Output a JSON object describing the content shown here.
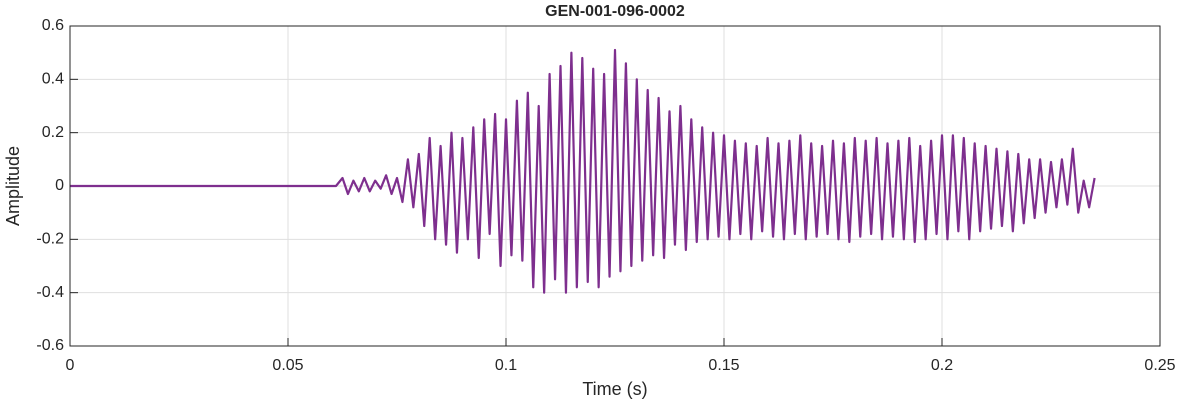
{
  "chart_data": {
    "type": "line",
    "title": "GEN-001-096-0002",
    "x_label": "Time (s)",
    "y_label": "Amplitude",
    "xlim": [
      0,
      0.25
    ],
    "xticks": [
      0,
      0.05,
      0.1,
      0.15,
      0.2,
      0.25
    ],
    "ylim": [
      -0.6,
      0.6
    ],
    "yticks": [
      0.6,
      0.4,
      0.2,
      0,
      -0.2,
      -0.4,
      -0.6
    ],
    "grid": true,
    "series": [
      {
        "name": "GEN-001-096-0002",
        "color": "#7e2f8e",
        "x": [
          0,
          0.061,
          0.0625,
          0.06375,
          0.065,
          0.06625,
          0.0675,
          0.06875,
          0.07,
          0.07125,
          0.0725,
          0.07375,
          0.075,
          0.07625,
          0.0775,
          0.07875,
          0.08,
          0.08125,
          0.0825,
          0.08375,
          0.085,
          0.08625,
          0.0875,
          0.08875,
          0.09,
          0.09125,
          0.0925,
          0.09375,
          0.095,
          0.09625,
          0.0975,
          0.09875,
          0.1,
          0.10125,
          0.1025,
          0.10375,
          0.105,
          0.10625,
          0.1075,
          0.10875,
          0.11,
          0.11125,
          0.1125,
          0.11375,
          0.115,
          0.11625,
          0.1175,
          0.11875,
          0.12,
          0.12125,
          0.1225,
          0.12375,
          0.125,
          0.12625,
          0.1275,
          0.12875,
          0.13,
          0.13125,
          0.1325,
          0.13375,
          0.135,
          0.13625,
          0.1375,
          0.13875,
          0.14,
          0.14125,
          0.1425,
          0.14375,
          0.145,
          0.14625,
          0.1475,
          0.14875,
          0.15,
          0.15125,
          0.1525,
          0.15375,
          0.155,
          0.15625,
          0.1575,
          0.15875,
          0.16,
          0.16125,
          0.1625,
          0.16375,
          0.165,
          0.16625,
          0.1675,
          0.16875,
          0.17,
          0.17125,
          0.1725,
          0.17375,
          0.175,
          0.17625,
          0.1775,
          0.17875,
          0.18,
          0.18125,
          0.1825,
          0.18375,
          0.185,
          0.18625,
          0.1875,
          0.18875,
          0.19,
          0.19125,
          0.1925,
          0.19375,
          0.195,
          0.19625,
          0.1975,
          0.19875,
          0.2,
          0.20125,
          0.2025,
          0.20375,
          0.205,
          0.20625,
          0.2075,
          0.20875,
          0.21,
          0.21125,
          0.2125,
          0.21375,
          0.215,
          0.21625,
          0.2175,
          0.21875,
          0.22,
          0.22125,
          0.2225,
          0.22375,
          0.225,
          0.22625,
          0.2275,
          0.22875,
          0.23,
          0.23125,
          0.2325,
          0.23375,
          0.235
        ],
        "values": [
          0,
          0,
          0.03,
          -0.03,
          0.02,
          -0.02,
          0.03,
          -0.02,
          0.02,
          -0.01,
          0.04,
          -0.03,
          0.03,
          -0.06,
          0.1,
          -0.08,
          0.12,
          -0.15,
          0.18,
          -0.2,
          0.15,
          -0.22,
          0.2,
          -0.25,
          0.18,
          -0.2,
          0.22,
          -0.27,
          0.25,
          -0.18,
          0.27,
          -0.3,
          0.25,
          -0.26,
          0.32,
          -0.28,
          0.35,
          -0.38,
          0.3,
          -0.4,
          0.42,
          -0.35,
          0.45,
          -0.4,
          0.5,
          -0.38,
          0.48,
          -0.36,
          0.44,
          -0.38,
          0.42,
          -0.34,
          0.51,
          -0.32,
          0.46,
          -0.3,
          0.4,
          -0.28,
          0.36,
          -0.26,
          0.33,
          -0.27,
          0.28,
          -0.22,
          0.3,
          -0.24,
          0.25,
          -0.21,
          0.22,
          -0.2,
          0.2,
          -0.19,
          0.19,
          -0.2,
          0.17,
          -0.18,
          0.16,
          -0.2,
          0.15,
          -0.17,
          0.18,
          -0.19,
          0.16,
          -0.2,
          0.17,
          -0.18,
          0.19,
          -0.2,
          0.16,
          -0.19,
          0.15,
          -0.18,
          0.17,
          -0.2,
          0.16,
          -0.21,
          0.18,
          -0.19,
          0.17,
          -0.18,
          0.18,
          -0.2,
          0.16,
          -0.19,
          0.17,
          -0.2,
          0.18,
          -0.21,
          0.15,
          -0.2,
          0.17,
          -0.18,
          0.19,
          -0.2,
          0.19,
          -0.17,
          0.18,
          -0.2,
          0.16,
          -0.17,
          0.15,
          -0.16,
          0.14,
          -0.15,
          0.13,
          -0.17,
          0.12,
          -0.14,
          0.1,
          -0.12,
          0.1,
          -0.1,
          0.09,
          -0.08,
          0.1,
          -0.07,
          0.14,
          -0.1,
          0.02,
          -0.08,
          0.03
        ]
      }
    ]
  }
}
